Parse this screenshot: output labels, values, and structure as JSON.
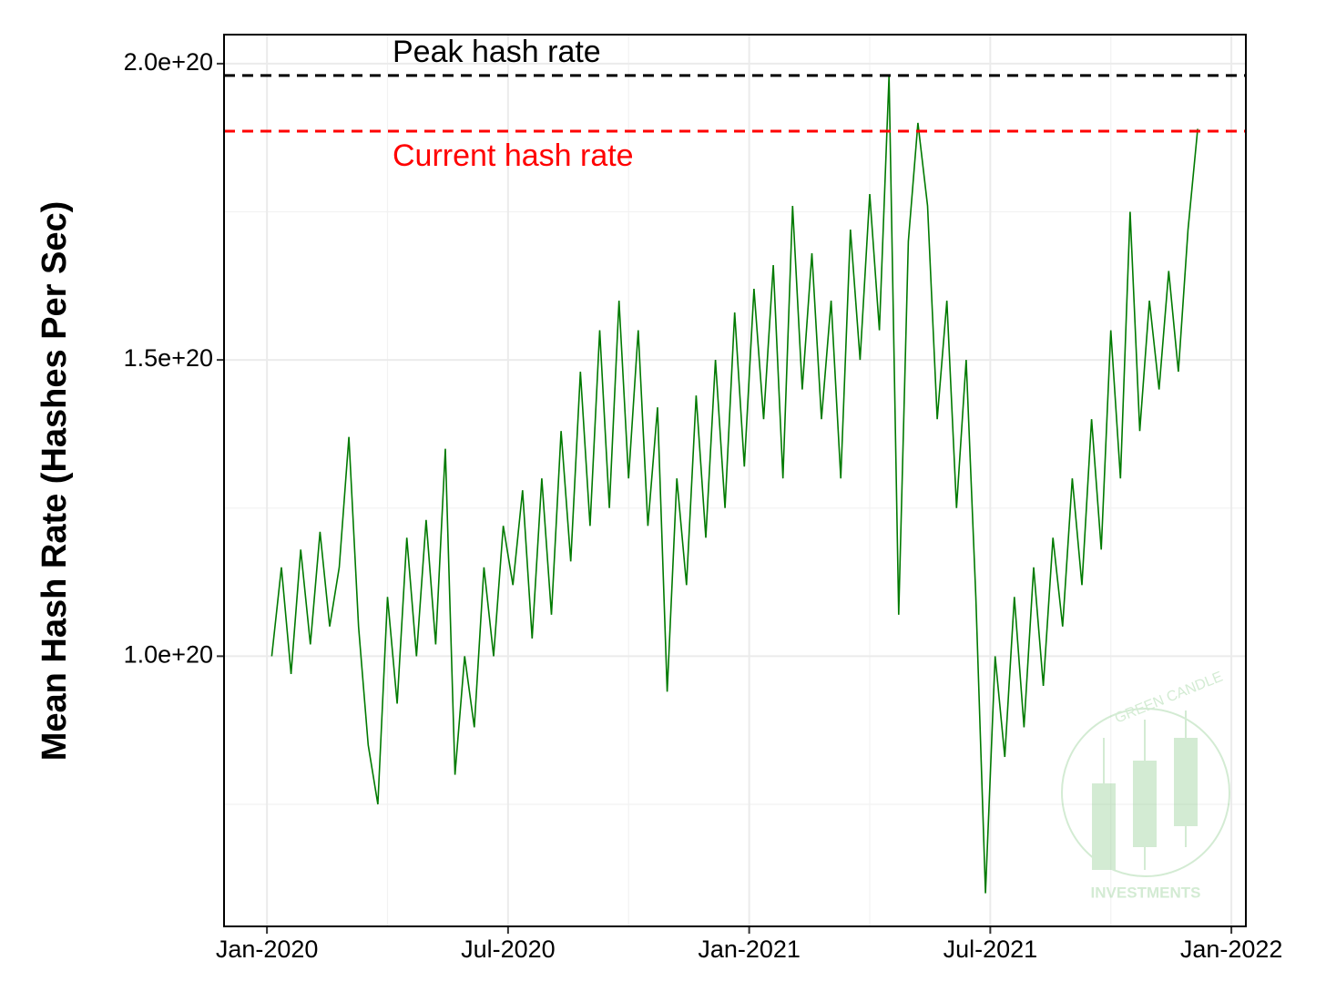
{
  "chart_data": {
    "type": "line",
    "y_label": "Mean Hash Rate (Hashes Per Sec)",
    "xlim": [
      2019.911,
      2022.03
    ],
    "ylim": [
      5.44e+19,
      2.049e+20
    ],
    "xticks": [
      {
        "value": 2020,
        "label": "Jan-2020"
      },
      {
        "value": 2020.5,
        "label": "Jul-2020"
      },
      {
        "value": 2021,
        "label": "Jan-2021"
      },
      {
        "value": 2021.5,
        "label": "Jul-2021"
      },
      {
        "value": 2022,
        "label": "Jan-2022"
      }
    ],
    "yticks": [
      {
        "value": 1e+20,
        "label": "1.0e+20"
      },
      {
        "value": 1.5e+20,
        "label": "1.5e+20"
      },
      {
        "value": 2e+20,
        "label": "2.0e+20"
      }
    ],
    "x_minor_grid": [
      2020.25,
      2020.75,
      2021.25,
      2021.75
    ],
    "y_minor_grid": [
      7.5e+19,
      1.25e+20,
      1.75e+20
    ],
    "grid": true,
    "reference_lines": [
      {
        "label": "Peak hash rate",
        "value": 1.98e+20,
        "color": "#000000"
      },
      {
        "label": "Current hash rate",
        "value": 1.886e+20,
        "color": "#ff0000"
      }
    ],
    "watermark": {
      "top": "GREEN CANDLE",
      "bottom": "INVESTMENTS"
    },
    "series": [
      {
        "name": "Mean hash rate",
        "color": "#007a00",
        "x": [
          2020.01,
          2020.03,
          2020.05,
          2020.07,
          2020.09,
          2020.11,
          2020.13,
          2020.15,
          2020.17,
          2020.19,
          2020.21,
          2020.23,
          2020.25,
          2020.27,
          2020.29,
          2020.31,
          2020.33,
          2020.35,
          2020.37,
          2020.39,
          2020.41,
          2020.43,
          2020.45,
          2020.47,
          2020.49,
          2020.51,
          2020.53,
          2020.55,
          2020.57,
          2020.59,
          2020.61,
          2020.63,
          2020.65,
          2020.67,
          2020.69,
          2020.71,
          2020.73,
          2020.75,
          2020.77,
          2020.79,
          2020.81,
          2020.83,
          2020.85,
          2020.87,
          2020.89,
          2020.91,
          2020.93,
          2020.95,
          2020.97,
          2020.99,
          2021.01,
          2021.03,
          2021.05,
          2021.07,
          2021.09,
          2021.11,
          2021.13,
          2021.15,
          2021.17,
          2021.19,
          2021.21,
          2021.23,
          2021.25,
          2021.27,
          2021.29,
          2021.31,
          2021.33,
          2021.35,
          2021.37,
          2021.39,
          2021.41,
          2021.43,
          2021.45,
          2021.47,
          2021.49,
          2021.51,
          2021.53,
          2021.55,
          2021.57,
          2021.59,
          2021.61,
          2021.63,
          2021.65,
          2021.67,
          2021.69,
          2021.71,
          2021.73,
          2021.75,
          2021.77,
          2021.79,
          2021.81,
          2021.83,
          2021.85,
          2021.87,
          2021.89,
          2021.91,
          2021.93
        ],
        "values": [
          1e+20,
          1.15e+20,
          9.7e+19,
          1.18e+20,
          1.02e+20,
          1.21e+20,
          1.05e+20,
          1.15e+20,
          1.37e+20,
          1.05e+20,
          8.5e+19,
          7.5e+19,
          1.1e+20,
          9.2e+19,
          1.2e+20,
          1e+20,
          1.23e+20,
          1.02e+20,
          1.35e+20,
          8e+19,
          1e+20,
          8.8e+19,
          1.15e+20,
          1e+20,
          1.22e+20,
          1.12e+20,
          1.28e+20,
          1.03e+20,
          1.3e+20,
          1.07e+20,
          1.38e+20,
          1.16e+20,
          1.48e+20,
          1.22e+20,
          1.55e+20,
          1.25e+20,
          1.6e+20,
          1.3e+20,
          1.55e+20,
          1.22e+20,
          1.42e+20,
          9.4e+19,
          1.3e+20,
          1.12e+20,
          1.44e+20,
          1.2e+20,
          1.5e+20,
          1.25e+20,
          1.58e+20,
          1.32e+20,
          1.62e+20,
          1.4e+20,
          1.66e+20,
          1.3e+20,
          1.76e+20,
          1.45e+20,
          1.68e+20,
          1.4e+20,
          1.6e+20,
          1.3e+20,
          1.72e+20,
          1.5e+20,
          1.78e+20,
          1.55e+20,
          1.98e+20,
          1.07e+20,
          1.7e+20,
          1.9e+20,
          1.76e+20,
          1.4e+20,
          1.6e+20,
          1.25e+20,
          1.5e+20,
          1.1e+20,
          6e+19,
          1e+20,
          8.3e+19,
          1.1e+20,
          8.8e+19,
          1.15e+20,
          9.5e+19,
          1.2e+20,
          1.05e+20,
          1.3e+20,
          1.12e+20,
          1.4e+20,
          1.18e+20,
          1.55e+20,
          1.3e+20,
          1.75e+20,
          1.38e+20,
          1.6e+20,
          1.45e+20,
          1.65e+20,
          1.48e+20,
          1.72e+20,
          1.89e+20
        ]
      }
    ]
  }
}
